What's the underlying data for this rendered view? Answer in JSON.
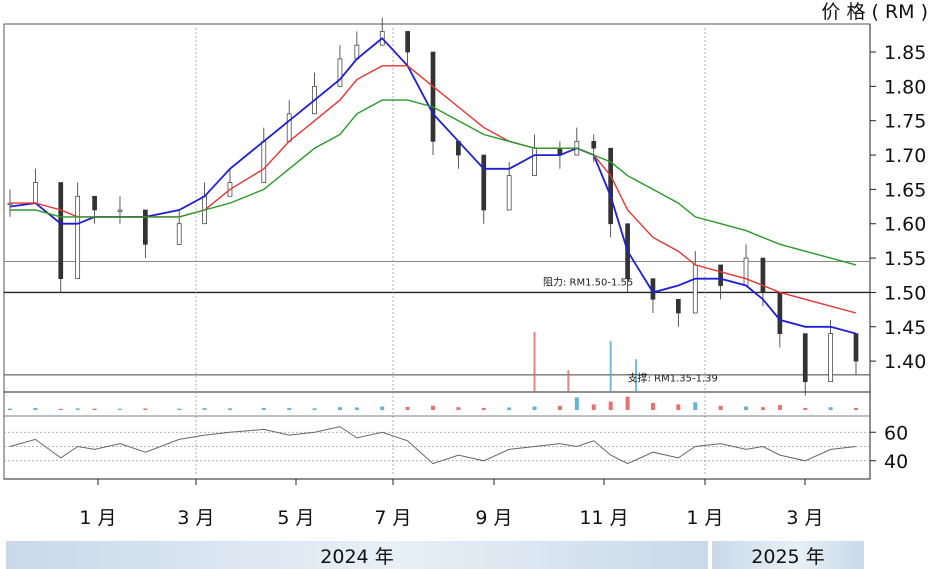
{
  "chart_data": {
    "type": "line",
    "title": "",
    "ylabel": "价 格 ( RM )",
    "ylim": [
      1.355,
      1.885
    ],
    "yticks": [
      "1.85",
      "1.80",
      "1.75",
      "1.70",
      "1.65",
      "1.60",
      "1.55",
      "1.50",
      "1.45",
      "1.40"
    ],
    "xticks": [
      "1 月",
      "3 月",
      "5 月",
      "7 月",
      "9 月",
      "11 月",
      "1 月",
      "3 月"
    ],
    "years": [
      "2024 年",
      "2025 年"
    ],
    "horizontal_lines": [
      1.545,
      1.5,
      1.38,
      1.355
    ],
    "annotations": [
      {
        "text": "阻力: RM1.50-1.55",
        "x": 0.63,
        "y": 1.51
      },
      {
        "text": "支撑: RM1.35-1.39",
        "x": 0.73,
        "y": 1.37
      }
    ],
    "x": [
      0,
      0.03,
      0.06,
      0.08,
      0.1,
      0.13,
      0.16,
      0.2,
      0.23,
      0.26,
      0.3,
      0.33,
      0.36,
      0.39,
      0.41,
      0.44,
      0.47,
      0.5,
      0.53,
      0.56,
      0.59,
      0.62,
      0.65,
      0.67,
      0.69,
      0.71,
      0.73,
      0.76,
      0.79,
      0.81,
      0.84,
      0.87,
      0.89,
      0.91,
      0.94,
      0.97,
      1.0
    ],
    "price": [
      1.63,
      1.66,
      1.52,
      1.64,
      1.62,
      1.62,
      1.57,
      1.6,
      1.64,
      1.66,
      1.72,
      1.76,
      1.8,
      1.84,
      1.86,
      1.88,
      1.85,
      1.72,
      1.7,
      1.62,
      1.67,
      1.71,
      1.7,
      1.72,
      1.71,
      1.6,
      1.52,
      1.49,
      1.47,
      1.54,
      1.51,
      1.55,
      1.5,
      1.44,
      1.37,
      1.44,
      1.4
    ],
    "series": [
      {
        "name": "",
        "color": "#1f1fd6",
        "values": [
          1.625,
          1.63,
          1.6,
          1.6,
          1.61,
          1.61,
          1.61,
          1.62,
          1.64,
          1.68,
          1.72,
          1.75,
          1.78,
          1.81,
          1.84,
          1.87,
          1.83,
          1.76,
          1.72,
          1.68,
          1.68,
          1.7,
          1.7,
          1.71,
          1.7,
          1.64,
          1.56,
          1.5,
          1.51,
          1.52,
          1.52,
          1.51,
          1.49,
          1.46,
          1.45,
          1.45,
          1.44
        ]
      },
      {
        "name": "",
        "color": "#e53535",
        "values": [
          1.63,
          1.63,
          1.62,
          1.61,
          1.61,
          1.61,
          1.61,
          1.61,
          1.62,
          1.65,
          1.68,
          1.72,
          1.75,
          1.78,
          1.81,
          1.83,
          1.83,
          1.8,
          1.77,
          1.74,
          1.72,
          1.71,
          1.71,
          1.71,
          1.7,
          1.67,
          1.62,
          1.58,
          1.56,
          1.54,
          1.53,
          1.52,
          1.51,
          1.5,
          1.49,
          1.48,
          1.47
        ]
      },
      {
        "name": "",
        "color": "#2a9a2a",
        "values": [
          1.62,
          1.62,
          1.61,
          1.61,
          1.61,
          1.61,
          1.61,
          1.61,
          1.62,
          1.63,
          1.65,
          1.68,
          1.71,
          1.73,
          1.76,
          1.78,
          1.78,
          1.77,
          1.75,
          1.73,
          1.72,
          1.71,
          1.71,
          1.71,
          1.7,
          1.69,
          1.67,
          1.65,
          1.63,
          1.61,
          1.6,
          1.59,
          1.58,
          1.57,
          1.56,
          1.55,
          1.54
        ]
      }
    ],
    "volume": [
      0.1,
      0.15,
      0.08,
      0.12,
      0.1,
      0.09,
      0.11,
      0.1,
      0.13,
      0.12,
      0.15,
      0.14,
      0.12,
      0.2,
      0.18,
      0.25,
      0.22,
      0.3,
      0.2,
      0.15,
      0.18,
      0.25,
      0.3,
      0.9,
      0.4,
      0.6,
      0.95,
      0.5,
      0.4,
      0.55,
      0.3,
      0.25,
      0.2,
      0.35,
      0.15,
      0.2,
      0.15
    ],
    "rsi": [
      50,
      55,
      42,
      50,
      48,
      52,
      46,
      55,
      58,
      60,
      62,
      58,
      60,
      64,
      56,
      60,
      54,
      38,
      44,
      40,
      48,
      50,
      52,
      50,
      54,
      44,
      38,
      46,
      42,
      50,
      52,
      48,
      50,
      44,
      40,
      48,
      50
    ],
    "rsi_ticks": [
      "60",
      "40"
    ]
  }
}
